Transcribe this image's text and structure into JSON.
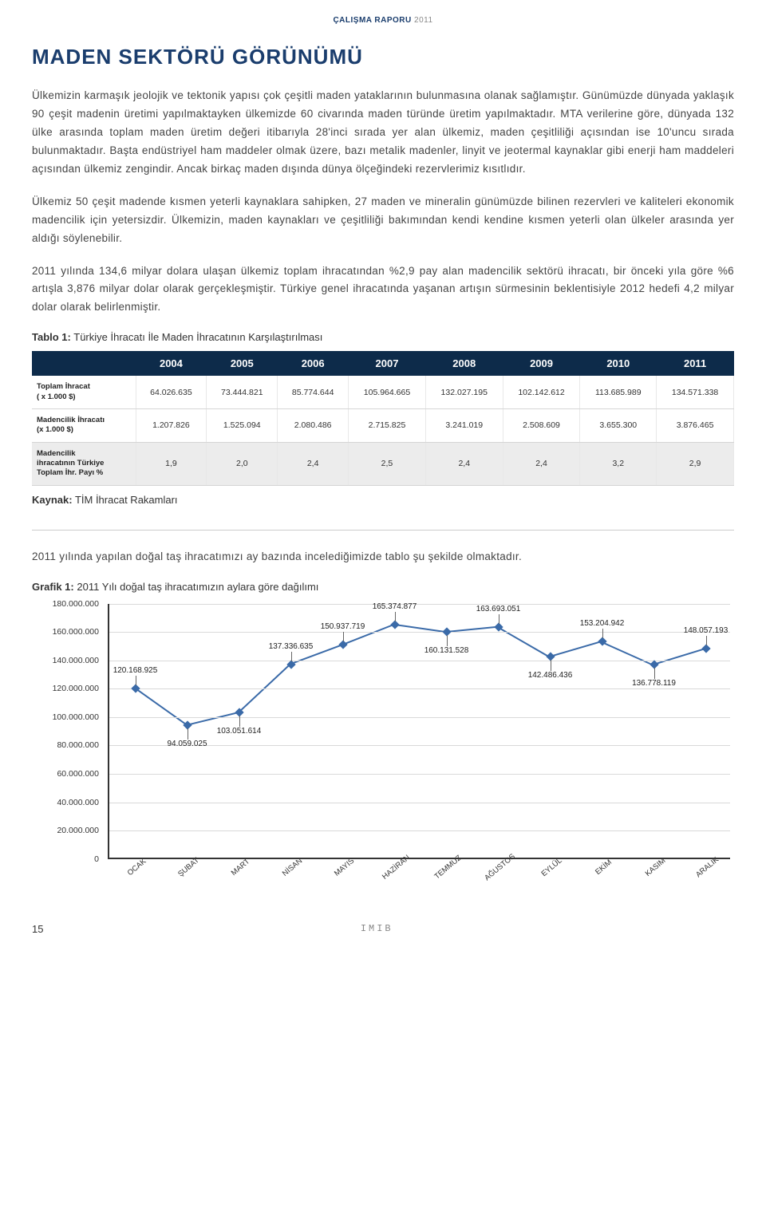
{
  "header": {
    "title": "ÇALIŞMA RAPORU",
    "year": "2011"
  },
  "main_title": "MADEN SEKTÖRÜ GÖRÜNÜMÜ",
  "paragraphs": [
    "Ülkemizin karmaşık jeolojik ve tektonik yapısı çok çeşitli maden yataklarının bulunmasına olanak sağlamıştır. Günümüzde dünyada yaklaşık 90 çeşit madenin üretimi yapılmaktayken ülkemizde 60 civarında maden türünde üretim yapılmaktadır. MTA verilerine göre, dünyada 132 ülke arasında toplam maden üretim değeri itibarıyla 28'inci sırada yer alan ülkemiz, maden çeşitliliği açısından ise 10'uncu sırada bulunmaktadır. Başta endüstriyel ham maddeler olmak üzere, bazı metalik madenler, linyit ve jeotermal kaynaklar gibi enerji ham maddeleri açısından ülkemiz zengindir. Ancak birkaç maden dışında dünya ölçeğindeki rezervlerimiz kısıtlıdır.",
    "Ülkemiz 50 çeşit madende kısmen yeterli kaynaklara sahipken, 27 maden ve mineralin günümüzde bilinen rezervleri ve kaliteleri ekonomik madencilik için yetersizdir. Ülkemizin, maden kaynakları ve çeşitliliği bakımından kendi kendine kısmen yeterli olan ülkeler arasında yer aldığı söylenebilir.",
    "2011 yılında 134,6 milyar dolara ulaşan ülkemiz toplam ihracatından %2,9 pay alan madencilik sektörü ihracatı, bir önceki yıla göre %6 artışla 3,876 milyar dolar olarak gerçekleşmiştir. Türkiye genel ihracatında yaşanan artışın sürmesinin beklentisiyle 2012 hedefi 4,2 milyar dolar olarak belirlenmiştir."
  ],
  "table1": {
    "caption_bold": "Tablo 1:",
    "caption_rest": " Türkiye İhracatı İle Maden İhracatının Karşılaştırılması",
    "years": [
      "2004",
      "2005",
      "2006",
      "2007",
      "2008",
      "2009",
      "2010",
      "2011"
    ],
    "rows": [
      {
        "label": "Toplam İhracat\n( x 1.000 $)",
        "values": [
          "64.026.635",
          "73.444.821",
          "85.774.644",
          "105.964.665",
          "132.027.195",
          "102.142.612",
          "113.685.989",
          "134.571.338"
        ]
      },
      {
        "label": "Madencilik İhracatı\n(x 1.000 $)",
        "values": [
          "1.207.826",
          "1.525.094",
          "2.080.486",
          "2.715.825",
          "3.241.019",
          "2.508.609",
          "3.655.300",
          "3.876.465"
        ]
      },
      {
        "label": "Madencilik\nihracatının Türkiye\nToplam İhr. Payı %",
        "values": [
          "1,9",
          "2,0",
          "2,4",
          "2,5",
          "2,4",
          "2,4",
          "3,2",
          "2,9"
        ]
      }
    ],
    "source_bold": "Kaynak:",
    "source_rest": " TİM İhracat Rakamları",
    "header_bg": "#0d2b4a",
    "alt_row_bg": "#ececec"
  },
  "after_table_paragraph": "2011 yılında yapılan doğal taş ihracatımızı ay bazında incelediğimizde tablo şu şekilde olmaktadır.",
  "chart1": {
    "caption_bold": "Grafik 1:",
    "caption_rest": " 2011 Yılı doğal taş ihracatımızın aylara göre dağılımı",
    "type": "line",
    "ymin": 0,
    "ymax": 180000000,
    "ytick_step": 20000000,
    "ytick_labels": [
      "0",
      "20.000.000",
      "40.000.000",
      "60.000.000",
      "80.000.000",
      "100.000.000",
      "120.000.000",
      "140.000.000",
      "160.000.000",
      "180.000.000"
    ],
    "categories": [
      "OCAK",
      "ŞUBAT",
      "MART",
      "NİSAN",
      "MAYIS",
      "HAZİRAN",
      "TEMMUZ",
      "AĞUSTOS",
      "EYLÜL",
      "EKİM",
      "KASIM",
      "ARALIK"
    ],
    "values": [
      120168925,
      94059025,
      103051614,
      137336635,
      150937719,
      165374877,
      160131528,
      163693051,
      142486436,
      153204942,
      136778119,
      148057193
    ],
    "value_labels": [
      "120.168.925",
      "94.059.025",
      "103.051.614",
      "137.336.635",
      "150.937.719",
      "165.374.877",
      "160.131.528",
      "163.693.051",
      "142.486.436",
      "153.204.942",
      "136.778.119",
      "148.057.193"
    ],
    "label_positions": [
      "above",
      "below",
      "below",
      "above",
      "above",
      "above",
      "below",
      "above",
      "below",
      "above",
      "below",
      "above"
    ],
    "line_color": "#3a6aa8",
    "marker_color": "#3a6aa8",
    "grid_color": "#d9d9d9",
    "axis_color": "#333333",
    "label_fontsize": 10
  },
  "footer": {
    "page": "15",
    "logo": "IMIB"
  }
}
